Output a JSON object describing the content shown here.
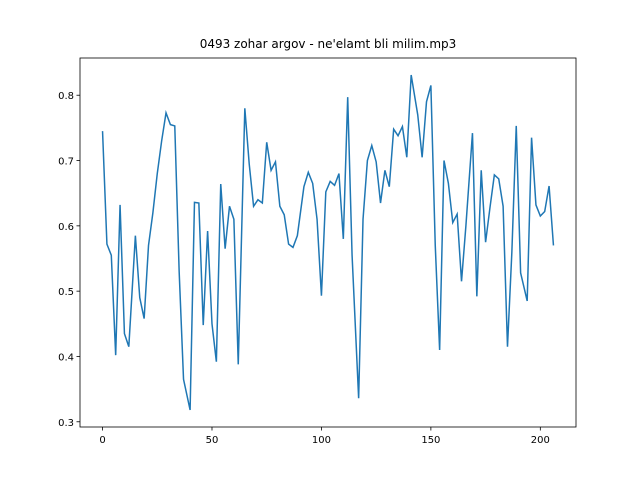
{
  "chart_data": {
    "type": "line",
    "title": "0493 zohar argov - ne'elamt bli milim.mp3",
    "x": [
      0,
      2,
      4,
      6,
      8,
      10,
      12,
      15,
      17,
      19,
      21,
      23,
      25,
      27,
      29,
      31,
      33,
      35,
      37,
      40,
      42,
      44,
      46,
      48,
      50,
      52,
      54,
      56,
      58,
      60,
      62,
      65,
      67,
      69,
      71,
      73,
      75,
      77,
      79,
      81,
      83,
      85,
      87,
      89,
      92,
      94,
      96,
      98,
      100,
      102,
      104,
      106,
      108,
      110,
      112,
      114,
      117,
      119,
      121,
      123,
      125,
      127,
      129,
      131,
      133,
      135,
      137,
      139,
      141,
      144,
      146,
      148,
      150,
      152,
      154,
      156,
      158,
      160,
      162,
      164,
      166,
      169,
      171,
      173,
      175,
      177,
      179,
      181,
      183,
      185,
      187,
      189,
      191,
      194,
      196,
      198,
      200,
      202,
      204,
      206
    ],
    "series": [
      {
        "color": "#1f77b4",
        "values": [
          0.745,
          0.572,
          0.555,
          0.402,
          0.632,
          0.435,
          0.415,
          0.585,
          0.49,
          0.458,
          0.57,
          0.62,
          0.68,
          0.73,
          0.773,
          0.755,
          0.753,
          0.53,
          0.365,
          0.318,
          0.636,
          0.635,
          0.448,
          0.592,
          0.45,
          0.392,
          0.664,
          0.565,
          0.63,
          0.61,
          0.388,
          0.78,
          0.695,
          0.63,
          0.64,
          0.635,
          0.728,
          0.685,
          0.698,
          0.63,
          0.617,
          0.572,
          0.567,
          0.585,
          0.66,
          0.682,
          0.665,
          0.61,
          0.493,
          0.652,
          0.668,
          0.662,
          0.68,
          0.58,
          0.797,
          0.555,
          0.336,
          0.61,
          0.7,
          0.723,
          0.698,
          0.635,
          0.685,
          0.66,
          0.748,
          0.738,
          0.752,
          0.705,
          0.831,
          0.77,
          0.705,
          0.79,
          0.815,
          0.57,
          0.41,
          0.7,
          0.665,
          0.605,
          0.618,
          0.515,
          0.6,
          0.742,
          0.492,
          0.685,
          0.575,
          0.628,
          0.678,
          0.672,
          0.63,
          0.415,
          0.56,
          0.753,
          0.528,
          0.485,
          0.735,
          0.632,
          0.615,
          0.622,
          0.661,
          0.57
        ]
      }
    ],
    "xlim": [
      -10.3,
      216.3
    ],
    "ylim": [
      0.292,
      0.857
    ],
    "xticks": [
      0,
      50,
      100,
      150,
      200
    ],
    "yticks": [
      0.3,
      0.4,
      0.5,
      0.6,
      0.7,
      0.8
    ]
  }
}
